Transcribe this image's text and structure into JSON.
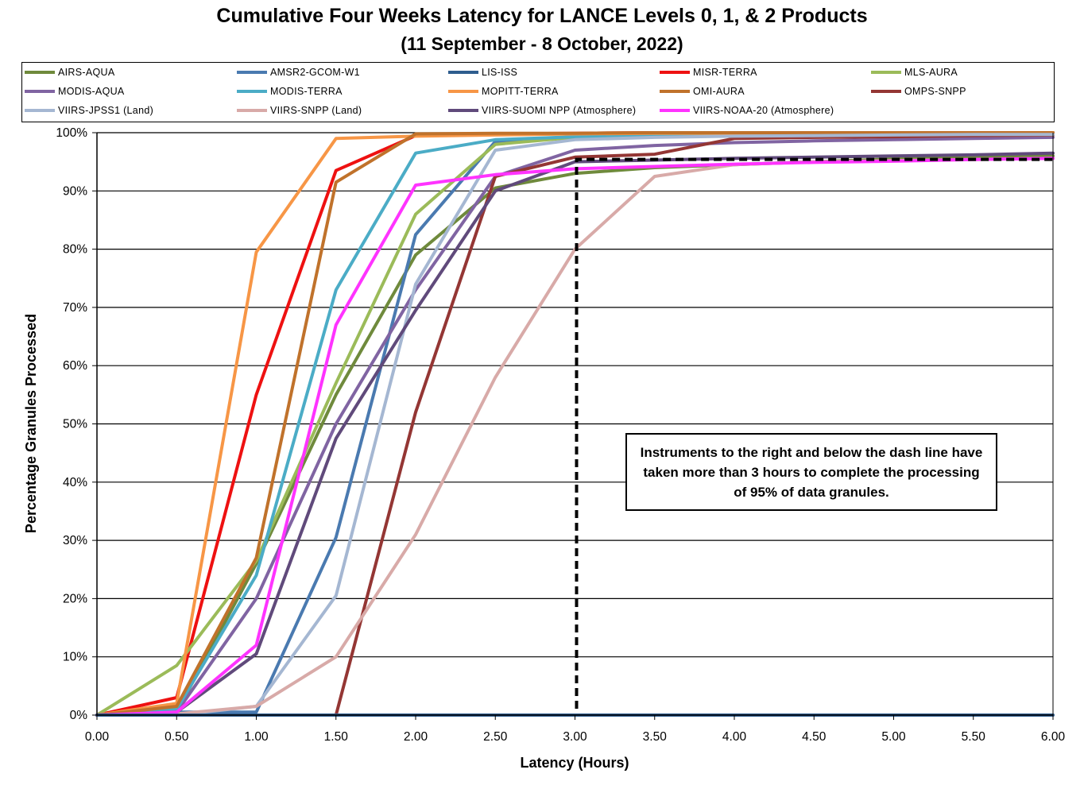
{
  "chart_data": {
    "type": "line",
    "title": "Cumulative Four Weeks Latency  for LANCE Levels 0, 1, & 2 Products",
    "subtitle": "(11  September   -  8  October,  2022)",
    "xlabel": "Latency (Hours)",
    "ylabel": "Percentage Granules Processed",
    "xlim": [
      0,
      6
    ],
    "ylim": [
      0,
      100
    ],
    "x_ticks": [
      "0.00",
      "0.50",
      "1.00",
      "1.50",
      "2.00",
      "2.50",
      "3.00",
      "3.50",
      "4.00",
      "4.50",
      "5.00",
      "5.50",
      "6.00"
    ],
    "y_ticks": [
      "0%",
      "10%",
      "20%",
      "30%",
      "40%",
      "50%",
      "60%",
      "70%",
      "80%",
      "90%",
      "100%"
    ],
    "grid": "horizontal",
    "legend_position": "top",
    "x": [
      0,
      0.5,
      1.0,
      1.5,
      2.0,
      2.5,
      3.0,
      3.5,
      4.0,
      4.5,
      5.0,
      5.5,
      6.0
    ],
    "series": [
      {
        "name": "AIRS-AQUA",
        "color": "#6f8a3c",
        "values": [
          0,
          0.5,
          26,
          55,
          79,
          90.5,
          93,
          94,
          94.5,
          95,
          95.5,
          95.7,
          96
        ]
      },
      {
        "name": "AMSR2-GCOM-W1",
        "color": "#4a7ab0",
        "values": [
          0,
          0.5,
          0.5,
          30.5,
          82.5,
          98.5,
          99.3,
          99.6,
          99.8,
          99.9,
          99.9,
          100,
          100
        ]
      },
      {
        "name": "LIS-ISS",
        "color": "#2e5d8e",
        "values": [
          0,
          0,
          0,
          0,
          0,
          0,
          0,
          0,
          0,
          0,
          0,
          0,
          0
        ]
      },
      {
        "name": "MISR-TERRA",
        "color": "#ee1111",
        "values": [
          0,
          3,
          55,
          93.5,
          99.5,
          99.8,
          99.9,
          100,
          100,
          100,
          100,
          100,
          100
        ]
      },
      {
        "name": "MLS-AURA",
        "color": "#9bbb59",
        "values": [
          0,
          8.5,
          26.5,
          57,
          86,
          98,
          99.2,
          99.6,
          99.8,
          99.9,
          99.9,
          99.9,
          100
        ]
      },
      {
        "name": "MODIS-AQUA",
        "color": "#8064a2",
        "values": [
          0,
          0.5,
          20,
          50,
          73,
          92.5,
          97,
          97.8,
          98.3,
          98.6,
          98.8,
          99,
          99.2
        ]
      },
      {
        "name": "MODIS-TERRA",
        "color": "#4bacc6",
        "values": [
          0,
          1,
          24,
          73,
          96.5,
          98.8,
          99.3,
          99.6,
          99.8,
          99.9,
          99.9,
          100,
          100
        ]
      },
      {
        "name": "MOPITT-TERRA",
        "color": "#f79646",
        "values": [
          0,
          2,
          79.5,
          99,
          99.4,
          99.6,
          99.8,
          99.9,
          99.9,
          100,
          100,
          100,
          100
        ]
      },
      {
        "name": "OMI-AURA",
        "color": "#c0722b",
        "values": [
          0,
          1.5,
          27,
          91.5,
          99.8,
          99.9,
          99.9,
          100,
          100,
          100,
          100,
          100,
          100
        ]
      },
      {
        "name": "OMPS-SNPP",
        "color": "#943634",
        "values": [
          0,
          0,
          0,
          0,
          52,
          92.5,
          95.8,
          96.3,
          99,
          99.2,
          99.3,
          99.5,
          99.6
        ]
      },
      {
        "name": "VIIRS-JPSS1 (Land)",
        "color": "#a5b7d2",
        "values": [
          0,
          0,
          1.5,
          20.5,
          74,
          97,
          98.8,
          99.2,
          99.4,
          99.5,
          99.6,
          99.7,
          99.7
        ]
      },
      {
        "name": "VIIRS-SNPP (Land)",
        "color": "#d8aaa8",
        "values": [
          0,
          0.2,
          1.5,
          10,
          31,
          58,
          80,
          92.5,
          94.5,
          95,
          95.2,
          95.4,
          95.6
        ]
      },
      {
        "name": "VIIRS-SUOMI NPP (Atmosphere)",
        "color": "#604a7b",
        "values": [
          0,
          0.5,
          10.5,
          47.5,
          69.5,
          90,
          95,
          95.3,
          95.6,
          95.8,
          96,
          96.2,
          96.5
        ]
      },
      {
        "name": "VIIRS-NOAA-20 (Atmosphere)",
        "color": "#ff33ff",
        "values": [
          0,
          0.5,
          12,
          67,
          91,
          92.8,
          93.8,
          94.2,
          94.6,
          94.9,
          95.1,
          95.4,
          95.6
        ]
      }
    ],
    "threshold_line": {
      "x": 3.0,
      "y": 95
    },
    "annotation": "Instruments to the right and below the dash line have taken more than 3 hours to complete the processing of 95% of data granules."
  }
}
